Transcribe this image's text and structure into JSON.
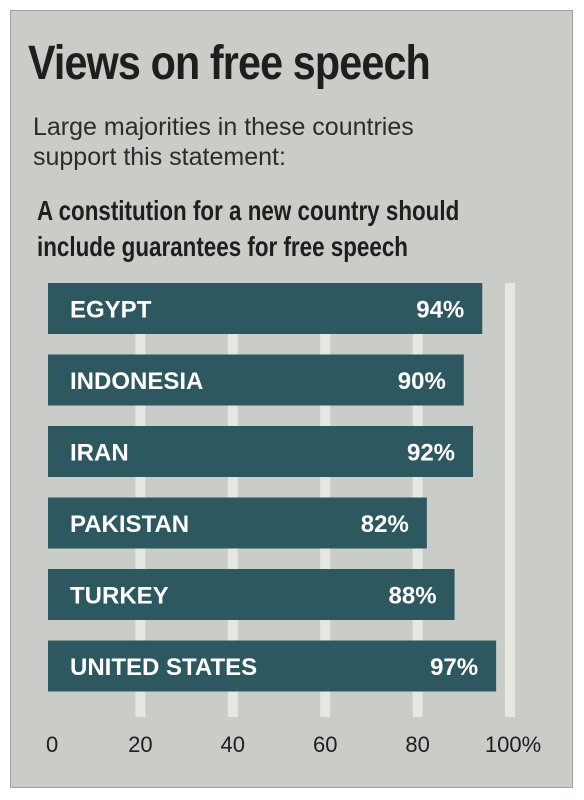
{
  "chart_data": {
    "type": "bar",
    "orientation": "horizontal",
    "title": "Views on free speech",
    "subtitle": "Large majorities in these countries support this statement:",
    "statement": "A constitution for a new country should include guarantees for free speech",
    "categories": [
      "EGYPT",
      "INDONESIA",
      "IRAN",
      "PAKISTAN",
      "TURKEY",
      "UNITED STATES"
    ],
    "values": [
      94,
      90,
      92,
      82,
      88,
      97
    ],
    "value_labels": [
      "94%",
      "90%",
      "92%",
      "82%",
      "88%",
      "97%"
    ],
    "xlim": [
      0,
      100
    ],
    "ticks": [
      0,
      20,
      40,
      60,
      80,
      100
    ],
    "tick_labels": [
      "0",
      "20",
      "40",
      "60",
      "80",
      "100%"
    ],
    "grid": true,
    "colors": {
      "background": "#c9ccc7",
      "bar": "#2e5860",
      "bar_text": "#ffffff",
      "grid": "#e6e6e2",
      "text": "#1e1e1e"
    }
  }
}
